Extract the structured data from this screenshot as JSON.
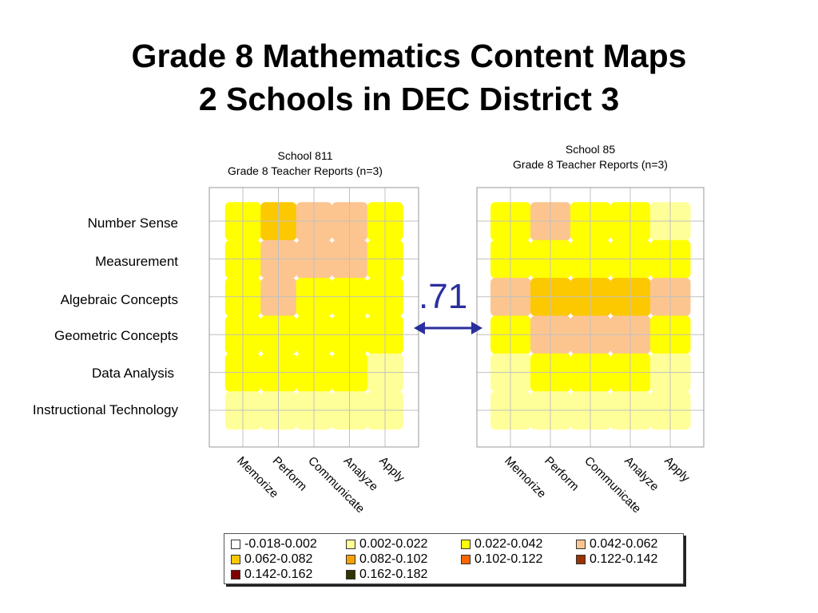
{
  "title_lines": [
    "Grade 8 Mathematics Content Maps",
    "2 Schools in DEC District 3"
  ],
  "correlation_label": ".71",
  "colors": {
    "band_1": "#ffffff",
    "band_2": "#ffff99",
    "band_3": "#ffff00",
    "band_4": "#fcc590",
    "band_5": "#fcc800",
    "band_6": "#f7a100",
    "band_7": "#ff6600",
    "band_8": "#993300",
    "band_9": "#800000",
    "band_10": "#333300",
    "arrow": "#2a2f9e",
    "grid": "#c0c0c0"
  },
  "chart_data": [
    {
      "type": "heatmap",
      "title_lines": [
        "School 811",
        "Grade 8 Teacher Reports (n=3)"
      ],
      "rows": [
        "Number Sense",
        "Measurement",
        "Algebraic Concepts",
        "Geometric Concepts",
        "Data Analysis",
        "Instructional Technology"
      ],
      "columns": [
        "Memorize",
        "Perform",
        "Communicate",
        "Analyze",
        "Apply"
      ],
      "values": [
        [
          0.034,
          0.067,
          0.046,
          0.046,
          0.036
        ],
        [
          0.032,
          0.056,
          0.045,
          0.044,
          0.032
        ],
        [
          0.03,
          0.044,
          0.036,
          0.034,
          0.028
        ],
        [
          0.028,
          0.034,
          0.032,
          0.03,
          0.024
        ],
        [
          0.026,
          0.03,
          0.028,
          0.026,
          0.022
        ],
        [
          0.016,
          0.02,
          0.02,
          0.018,
          0.012
        ]
      ]
    },
    {
      "type": "heatmap",
      "title_lines": [
        "School 85",
        "Grade 8 Teacher Reports (n=3)"
      ],
      "rows": [
        "Number Sense",
        "Measurement",
        "Algebraic Concepts",
        "Geometric Concepts",
        "Data Analysis",
        "Instructional Technology"
      ],
      "columns": [
        "Memorize",
        "Perform",
        "Communicate",
        "Analyze",
        "Apply"
      ],
      "values": [
        [
          0.028,
          0.045,
          0.04,
          0.024,
          0.018
        ],
        [
          0.03,
          0.04,
          0.038,
          0.036,
          0.032
        ],
        [
          0.05,
          0.064,
          0.066,
          0.062,
          0.05
        ],
        [
          0.04,
          0.05,
          0.05,
          0.046,
          0.032
        ],
        [
          0.022,
          0.028,
          0.028,
          0.026,
          0.02
        ],
        [
          0.016,
          0.018,
          0.018,
          0.016,
          0.012
        ]
      ]
    }
  ],
  "legend": {
    "items": [
      {
        "label": "-0.018-0.002",
        "color": "#ffffff"
      },
      {
        "label": "0.002-0.022",
        "color": "#ffff99"
      },
      {
        "label": "0.022-0.042",
        "color": "#ffff00"
      },
      {
        "label": "0.042-0.062",
        "color": "#fcc590"
      },
      {
        "label": "0.062-0.082",
        "color": "#fcc800"
      },
      {
        "label": "0.082-0.102",
        "color": "#f7a100"
      },
      {
        "label": "0.102-0.122",
        "color": "#ff6600"
      },
      {
        "label": "0.122-0.142",
        "color": "#993300"
      },
      {
        "label": "0.142-0.162",
        "color": "#800000"
      },
      {
        "label": "0.162-0.182",
        "color": "#333300"
      }
    ]
  }
}
